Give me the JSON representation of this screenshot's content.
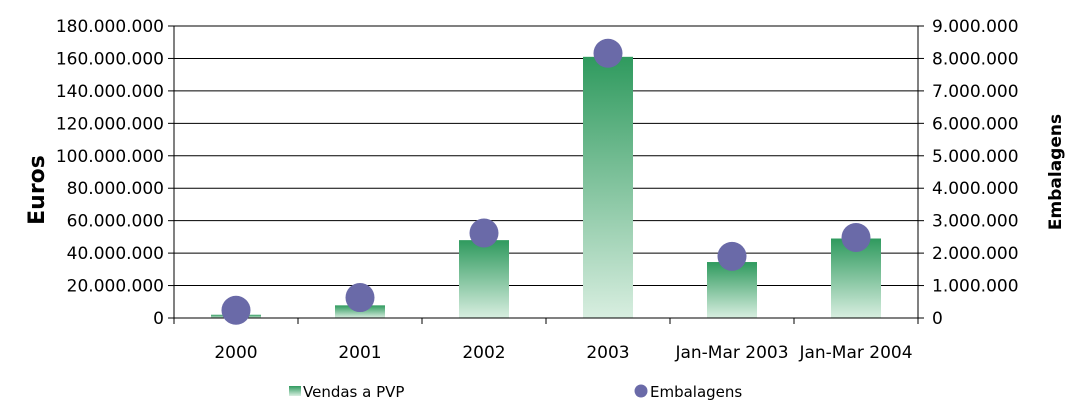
{
  "chart_data": {
    "type": "bar",
    "categories": [
      "2000",
      "2001",
      "2002",
      "2003",
      "Jan-Mar 2003",
      "Jan-Mar 2004"
    ],
    "series": [
      {
        "name": "Vendas a PVP",
        "type": "bar",
        "axis": "left",
        "values": [
          2000000,
          7800000,
          48000000,
          161000000,
          34500000,
          49000000
        ],
        "color": "#3a9a62"
      },
      {
        "name": "Embalagens",
        "type": "scatter",
        "axis": "right",
        "values": [
          240000,
          630000,
          2620000,
          8160000,
          1900000,
          2480000
        ],
        "color": "#6a6aa8"
      }
    ],
    "ylabel": "Euros",
    "y2label": "Embalagens",
    "ylim": [
      0,
      180000000
    ],
    "y2lim": [
      0,
      9000000
    ],
    "yticks": [
      "0",
      "20.000.000",
      "40.000.000",
      "60.000.000",
      "80.000.000",
      "100.000.000",
      "120.000.000",
      "140.000.000",
      "160.000.000",
      "180.000.000"
    ],
    "y2ticks": [
      "0",
      "1.000.000",
      "2.000.000",
      "3.000.000",
      "4.000.000",
      "5.000.000",
      "6.000.000",
      "7.000.000",
      "8.000.000",
      "9.000.000"
    ],
    "grid": true,
    "legend": "bottom"
  }
}
